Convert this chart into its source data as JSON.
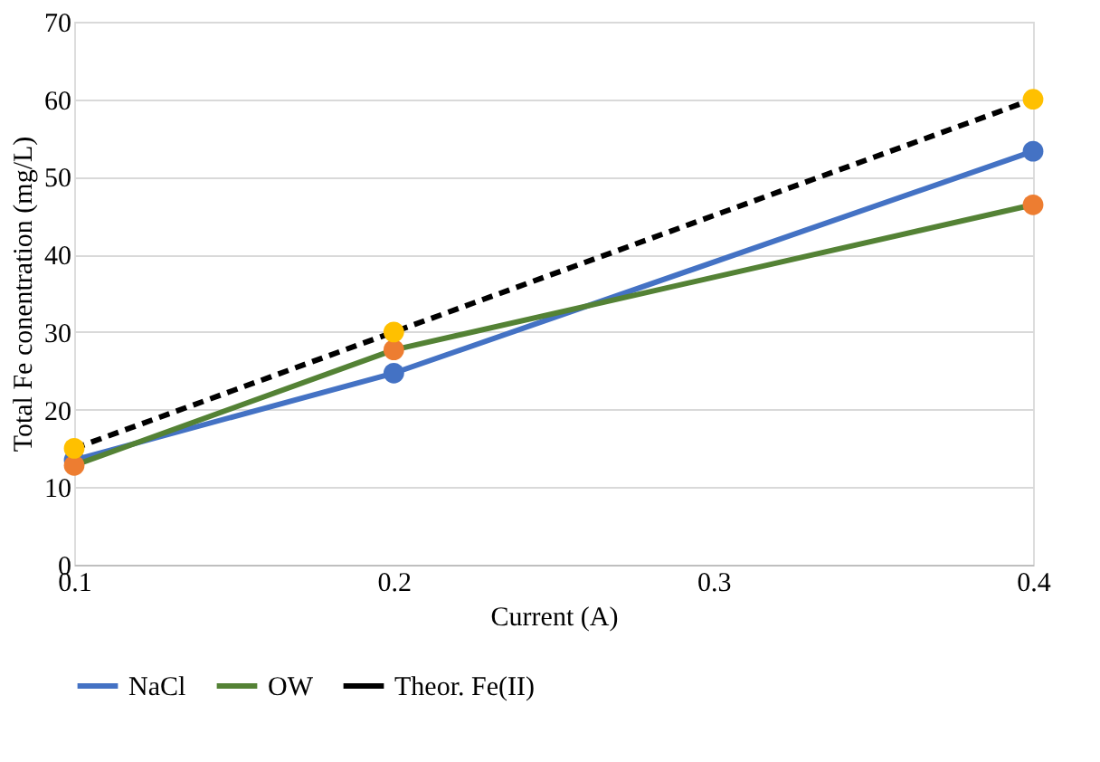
{
  "chart_data": {
    "type": "line",
    "xlabel": "Current (A)",
    "ylabel": "Total Fe conentration (mg/L)",
    "x": [
      0.1,
      0.2,
      0.4
    ],
    "series": [
      {
        "name": "NaCl",
        "color": "#4472c4",
        "colors": [
          "#4472c4",
          "#4472c4",
          "#4472c4"
        ],
        "line_style": "solid",
        "values": [
          13.5,
          24.7,
          53.3
        ]
      },
      {
        "name": "OW",
        "color": "#548235",
        "colors": [
          "#ed7d31",
          "#ed7d31",
          "#ed7d31"
        ],
        "line_style": "solid",
        "values": [
          12.8,
          27.7,
          46.4
        ]
      },
      {
        "name": "Theor. Fe(II)",
        "color": "#000000",
        "colors": [
          "#ffc000",
          "#ffc000",
          "#ffc000"
        ],
        "line_style": "dashed",
        "values": [
          15,
          30,
          60
        ]
      }
    ],
    "xlim": [
      0.1,
      0.4
    ],
    "xticks": [
      0.1,
      0.2,
      0.3,
      0.4
    ],
    "ylim": [
      0,
      70
    ],
    "yticks": [
      0,
      10,
      20,
      30,
      40,
      50,
      60,
      70
    ],
    "grid": "y",
    "legend": "bottom",
    "marker": "circle"
  }
}
